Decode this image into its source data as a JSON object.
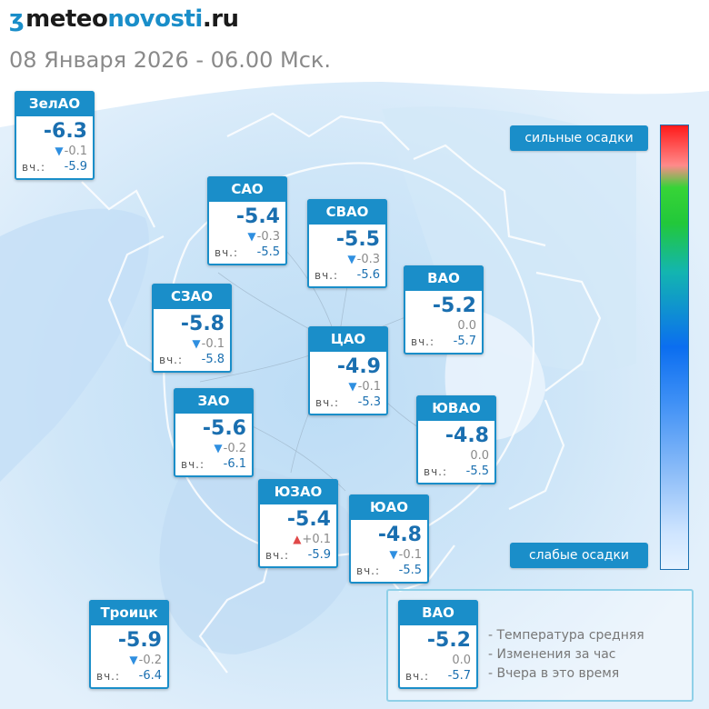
{
  "header": {
    "logo_mark": "ʒ",
    "logo_part1": "meteo",
    "logo_part2": "novosti",
    "logo_part3": ".ru",
    "date_line": "08 Января 2026 - 06.00 Мск."
  },
  "districts": [
    {
      "id": "zelao",
      "name": "ЗелАО",
      "temp": "-6.3",
      "change": "-0.1",
      "trend": "down",
      "yest_label": "вч.:",
      "yest": "-5.9"
    },
    {
      "id": "sao",
      "name": "САО",
      "temp": "-5.4",
      "change": "-0.3",
      "trend": "down",
      "yest_label": "вч.:",
      "yest": "-5.5"
    },
    {
      "id": "svao",
      "name": "СВАО",
      "temp": "-5.5",
      "change": "-0.3",
      "trend": "down",
      "yest_label": "вч.:",
      "yest": "-5.6"
    },
    {
      "id": "vao",
      "name": "ВАО",
      "temp": "-5.2",
      "change": "0.0",
      "trend": "none",
      "yest_label": "вч.:",
      "yest": "-5.7"
    },
    {
      "id": "szao",
      "name": "СЗАО",
      "temp": "-5.8",
      "change": "-0.1",
      "trend": "down",
      "yest_label": "вч.:",
      "yest": "-5.8"
    },
    {
      "id": "cao",
      "name": "ЦАО",
      "temp": "-4.9",
      "change": "-0.1",
      "trend": "down",
      "yest_label": "вч.:",
      "yest": "-5.3"
    },
    {
      "id": "zao",
      "name": "ЗАО",
      "temp": "-5.6",
      "change": "-0.2",
      "trend": "down",
      "yest_label": "вч.:",
      "yest": "-6.1"
    },
    {
      "id": "yuvao",
      "name": "ЮВАО",
      "temp": "-4.8",
      "change": "0.0",
      "trend": "none",
      "yest_label": "вч.:",
      "yest": "-5.5"
    },
    {
      "id": "yuzao",
      "name": "ЮЗАО",
      "temp": "-5.4",
      "change": "+0.1",
      "trend": "up",
      "yest_label": "вч.:",
      "yest": "-5.9"
    },
    {
      "id": "yuao",
      "name": "ЮАО",
      "temp": "-4.8",
      "change": "-0.1",
      "trend": "down",
      "yest_label": "вч.:",
      "yest": "-5.5"
    },
    {
      "id": "troitsk",
      "name": "Троицк",
      "temp": "-5.9",
      "change": "-0.2",
      "trend": "down",
      "yest_label": "вч.:",
      "yest": "-6.4"
    },
    {
      "id": "legend",
      "name": "ВАО",
      "temp": "-5.2",
      "change": "0.0",
      "trend": "none",
      "yest_label": "вч.:",
      "yest": "-5.7"
    }
  ],
  "precip_scale": {
    "high_label": "сильные осадки",
    "low_label": "слабые осадки"
  },
  "legend": {
    "line1": "- Температура средняя",
    "line2": "- Изменения за час",
    "line3": "- Вчера в это время"
  },
  "icons": {
    "trend_down": "triangle-down-icon",
    "trend_up": "triangle-up-icon"
  },
  "colors": {
    "accent": "#1a8ec9",
    "temp": "#1a6fb0",
    "down": "#2f8fe0",
    "up": "#e04848"
  }
}
